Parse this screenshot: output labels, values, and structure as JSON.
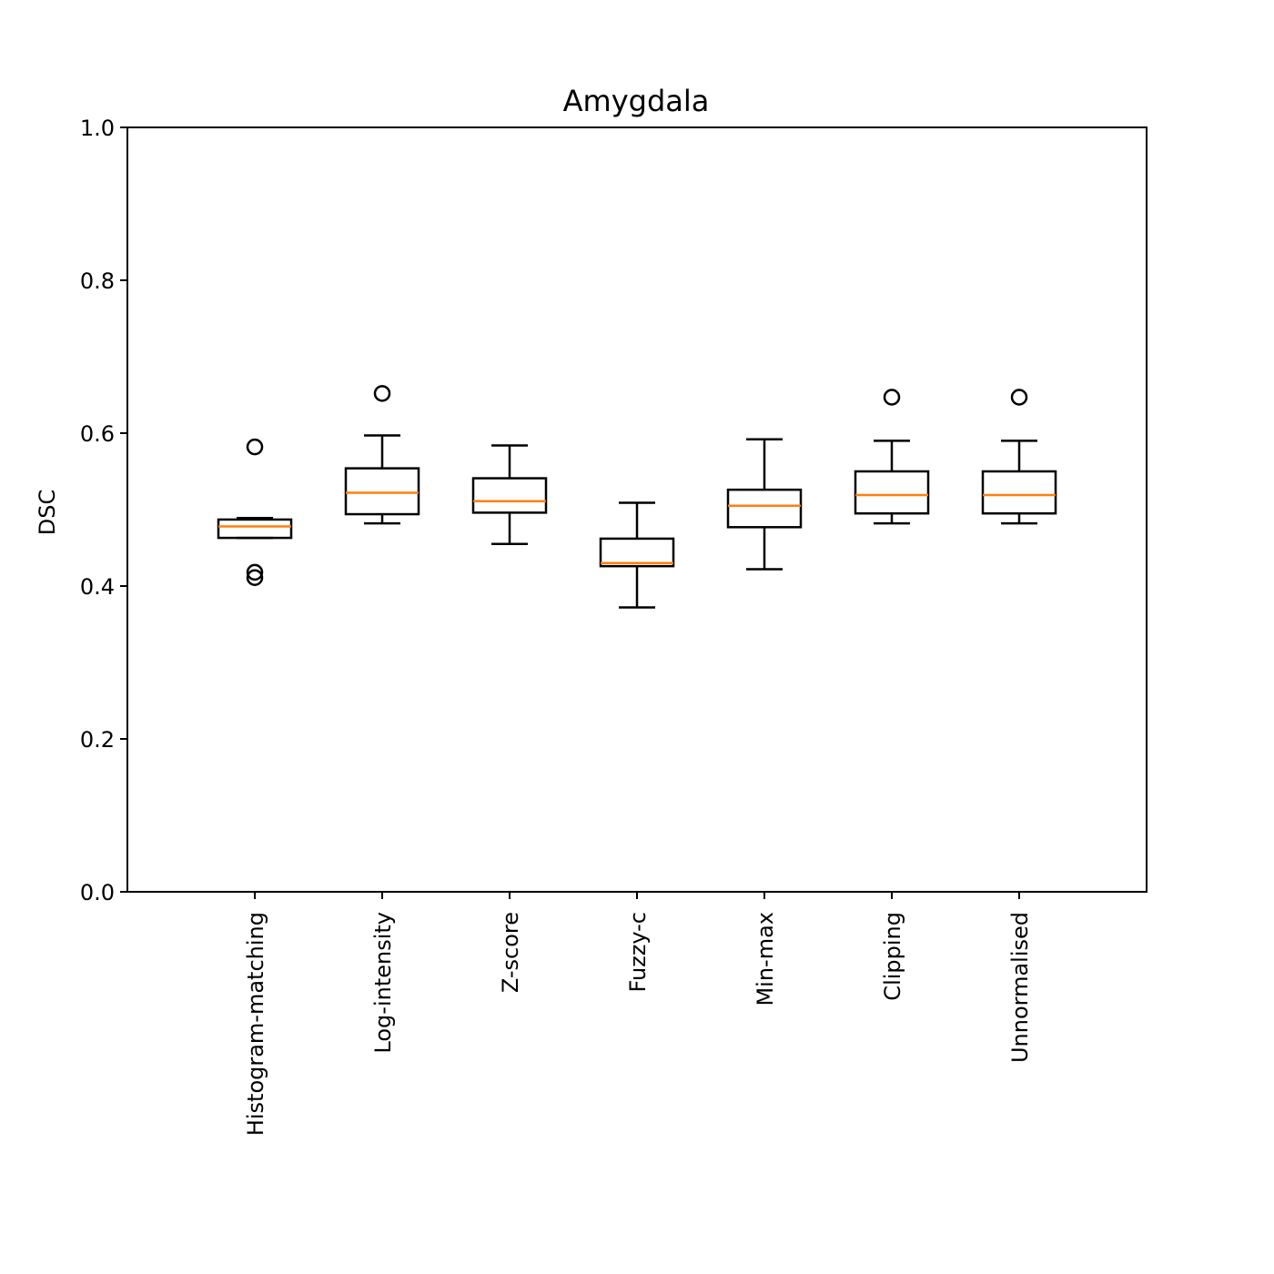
{
  "chart_data": {
    "type": "boxplot",
    "title": "Amygdala",
    "ylabel": "DSC",
    "xlabel": "",
    "ylim": [
      0.0,
      1.0
    ],
    "yticks": [
      "0.0",
      "0.2",
      "0.4",
      "0.6",
      "0.8",
      "1.0"
    ],
    "categories": [
      "Histogram-matching",
      "Log-intensity",
      "Z-score",
      "Fuzzy-c",
      "Min-max",
      "Clipping",
      "Unnormalised"
    ],
    "boxes": [
      {
        "whislo": 0.463,
        "q1": 0.463,
        "med": 0.478,
        "q3": 0.487,
        "whishi": 0.489,
        "fliers": [
          0.582,
          0.418,
          0.411
        ]
      },
      {
        "whislo": 0.482,
        "q1": 0.494,
        "med": 0.522,
        "q3": 0.554,
        "whishi": 0.597,
        "fliers": [
          0.652
        ]
      },
      {
        "whislo": 0.455,
        "q1": 0.496,
        "med": 0.511,
        "q3": 0.541,
        "whishi": 0.584,
        "fliers": []
      },
      {
        "whislo": 0.372,
        "q1": 0.426,
        "med": 0.43,
        "q3": 0.462,
        "whishi": 0.509,
        "fliers": []
      },
      {
        "whislo": 0.422,
        "q1": 0.477,
        "med": 0.505,
        "q3": 0.526,
        "whishi": 0.592,
        "fliers": []
      },
      {
        "whislo": 0.482,
        "q1": 0.495,
        "med": 0.519,
        "q3": 0.55,
        "whishi": 0.59,
        "fliers": [
          0.647
        ]
      },
      {
        "whislo": 0.482,
        "q1": 0.495,
        "med": 0.519,
        "q3": 0.55,
        "whishi": 0.59,
        "fliers": [
          0.647
        ]
      }
    ],
    "colors": {
      "median": "#ff7f0e",
      "box": "#000000"
    },
    "grid": false,
    "legend": "none"
  }
}
